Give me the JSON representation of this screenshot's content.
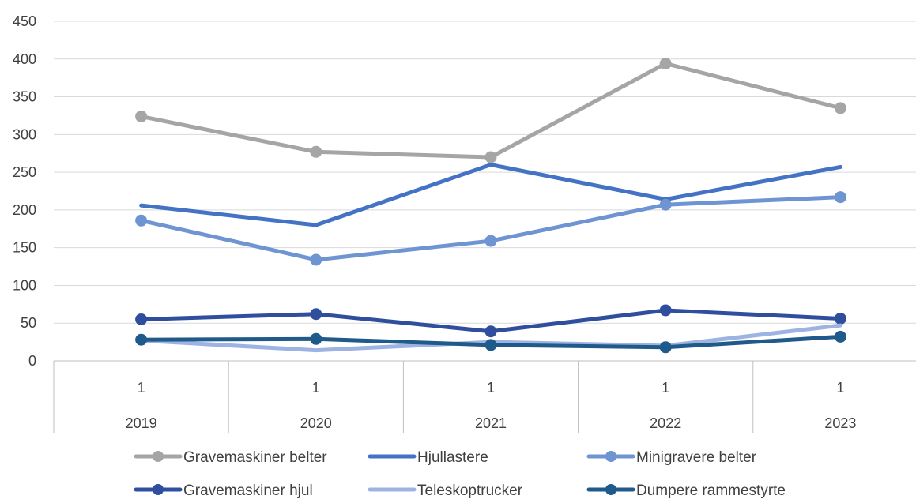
{
  "chart_data": {
    "type": "line",
    "categories": [
      {
        "level1": "1",
        "level2": "2019"
      },
      {
        "level1": "1",
        "level2": "2020"
      },
      {
        "level1": "1",
        "level2": "2021"
      },
      {
        "level1": "1",
        "level2": "2022"
      },
      {
        "level1": "1",
        "level2": "2023"
      }
    ],
    "ylim": [
      0,
      450
    ],
    "yticks": [
      0,
      50,
      100,
      150,
      200,
      250,
      300,
      350,
      400,
      450
    ],
    "grid": true,
    "legend_position": "bottom",
    "series": [
      {
        "name": "Gravemaskiner belter",
        "color": "#a5a5a5",
        "markers": true,
        "values": [
          324,
          277,
          270,
          394,
          335
        ]
      },
      {
        "name": "Hjullastere",
        "color": "#4472c4",
        "markers": false,
        "values": [
          206,
          180,
          260,
          214,
          257
        ]
      },
      {
        "name": "Minigravere belter",
        "color": "#6f94d2",
        "markers": true,
        "values": [
          186,
          134,
          159,
          207,
          217
        ]
      },
      {
        "name": "Gravemaskiner hjul",
        "color": "#2f4f9e",
        "markers": true,
        "values": [
          55,
          62,
          39,
          67,
          56
        ]
      },
      {
        "name": "Teleskoptrucker",
        "color": "#9db4e2",
        "markers": false,
        "values": [
          27,
          14,
          25,
          20,
          47
        ]
      },
      {
        "name": "Dumpere rammestyrte",
        "color": "#1f5a8a",
        "markers": true,
        "values": [
          28,
          29,
          21,
          18,
          32
        ]
      }
    ]
  }
}
